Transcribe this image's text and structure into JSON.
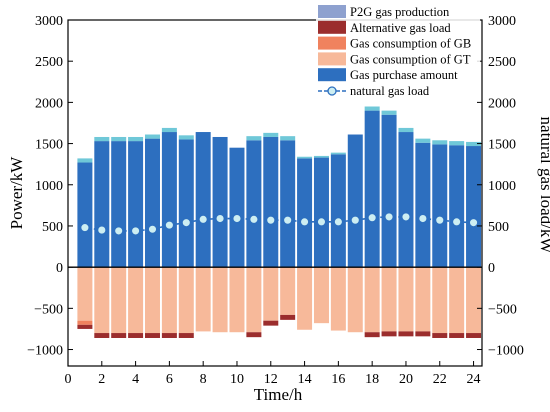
{
  "chart_data": {
    "type": "bar",
    "stacked": true,
    "xlabel": "Time/h",
    "ylabel": "Power/kW",
    "y2label": "natural gas load/kW",
    "xlim": [
      0,
      24.5
    ],
    "ylim": [
      -1200,
      3000
    ],
    "y2lim": [
      -1200,
      3000
    ],
    "xticks": [
      0,
      2,
      4,
      6,
      8,
      10,
      12,
      14,
      16,
      18,
      20,
      22,
      24
    ],
    "yticks": [
      -1000,
      -500,
      0,
      500,
      1000,
      1500,
      2000,
      2500,
      3000
    ],
    "y2ticks": [
      -1000,
      -500,
      0,
      500,
      1000,
      1500,
      2000,
      2500,
      3000
    ],
    "yticklabels": [
      "−1000",
      "−500",
      "0",
      "500",
      "1000",
      "1500",
      "2000",
      "2500",
      "3000"
    ],
    "y2ticklabels": [
      "−1000",
      "−500",
      "0",
      "500",
      "1000",
      "1500",
      "2000",
      "2500",
      "3000"
    ],
    "legend_position": "top-right",
    "grid": false,
    "x": [
      1,
      2,
      3,
      4,
      5,
      6,
      7,
      8,
      9,
      10,
      11,
      12,
      13,
      14,
      15,
      16,
      17,
      18,
      19,
      20,
      21,
      22,
      23,
      24
    ],
    "bar_series": [
      {
        "name": "Gas purchase amount",
        "color": "#2d6fbf",
        "values": [
          1270,
          1530,
          1530,
          1530,
          1560,
          1640,
          1550,
          1640,
          1580,
          1450,
          1540,
          1580,
          1540,
          1320,
          1330,
          1370,
          1610,
          1900,
          1850,
          1640,
          1510,
          1490,
          1480,
          1470
        ]
      },
      {
        "name": "P2G gas production",
        "color": "#6fc8d8",
        "values": [
          50,
          50,
          50,
          50,
          50,
          50,
          50,
          0,
          0,
          0,
          50,
          50,
          50,
          20,
          20,
          20,
          0,
          50,
          50,
          50,
          50,
          50,
          50,
          50
        ]
      },
      {
        "name": "Gas consumption of GT",
        "color": "#f7b99a",
        "values": [
          -650,
          -800,
          -800,
          -800,
          -800,
          -800,
          -800,
          -780,
          -790,
          -790,
          -790,
          -650,
          -580,
          -760,
          -680,
          -770,
          -790,
          -790,
          -780,
          -780,
          -780,
          -800,
          -800,
          -800
        ]
      },
      {
        "name": "Gas consumption of GB",
        "color": "#f0825e",
        "values": [
          -50,
          0,
          0,
          0,
          0,
          0,
          0,
          0,
          0,
          0,
          0,
          0,
          0,
          0,
          0,
          0,
          0,
          0,
          0,
          0,
          0,
          0,
          0,
          0
        ]
      },
      {
        "name": "Alternative gas load",
        "color": "#9b2d2d",
        "values": [
          -50,
          -60,
          -60,
          -60,
          -60,
          -60,
          -60,
          0,
          0,
          0,
          -60,
          -60,
          -60,
          0,
          0,
          0,
          0,
          -60,
          -60,
          -60,
          -60,
          -60,
          -60,
          -60
        ]
      }
    ],
    "line_series": [
      {
        "name": "natural gas load",
        "color": "#2d6fbf",
        "marker_fill": "#cdeef2",
        "axis": "right",
        "values": [
          480,
          450,
          440,
          440,
          460,
          510,
          540,
          580,
          590,
          590,
          580,
          570,
          570,
          550,
          550,
          550,
          570,
          600,
          610,
          610,
          590,
          570,
          550,
          540
        ]
      }
    ],
    "legend": [
      {
        "name": "P2G gas production",
        "kind": "patch",
        "color": "#8ea1cf"
      },
      {
        "name": "Alternative gas load",
        "kind": "patch",
        "color": "#9b2d2d"
      },
      {
        "name": "Gas consumption of GB",
        "kind": "patch",
        "color": "#f0825e"
      },
      {
        "name": "Gas consumption of GT",
        "kind": "patch",
        "color": "#f7b99a"
      },
      {
        "name": "Gas purchase amount",
        "kind": "patch",
        "color": "#2d6fbf"
      },
      {
        "name": "natural gas load",
        "kind": "line",
        "color": "#2d6fbf",
        "marker_fill": "#cdeef2"
      }
    ]
  }
}
